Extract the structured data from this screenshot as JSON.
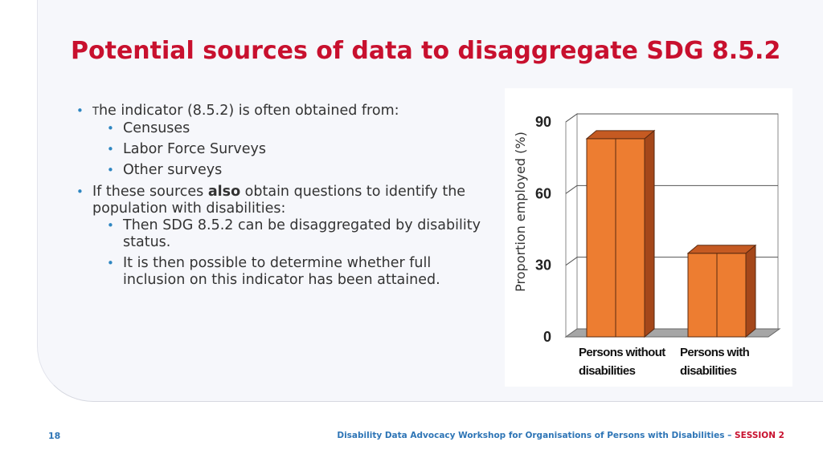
{
  "slide": {
    "title": "Potential sources of data to disaggregate SDG 8.5.2",
    "bullets": {
      "b1_prefix": "T",
      "b1_rest": "he indicator (8.5.2) is often obtained from:",
      "sub1": [
        "Censuses",
        "Labor Force Surveys",
        "Other surveys"
      ],
      "b2_pre": "If these sources ",
      "b2_bold": "also",
      "b2_post": " obtain questions to identify the population with disabilities:",
      "sub2": [
        "Then SDG 8.5.2 can be disaggregated by disability status.",
        "It is then possible to determine whether full inclusion on this indicator has been attained."
      ]
    }
  },
  "footer": {
    "page_number": "18",
    "text": "Disability Data Advocacy Workshop for Organisations of Persons with Disabilities – ",
    "session": "SESSION 2"
  },
  "colors": {
    "title": "#c8102e",
    "accent": "#2e86c1",
    "bar_front": "#ed7d31",
    "bar_side": "#a4471a",
    "bar_top": "#c55a22"
  },
  "chart_data": {
    "type": "bar",
    "categories": [
      [
        "Persons without",
        "disabilities"
      ],
      [
        "Persons with",
        "disabilities"
      ]
    ],
    "values": [
      83,
      35
    ],
    "ylabel": "Proportion employed (%)",
    "ylim": [
      0,
      90
    ],
    "yticks": [
      0,
      30,
      60,
      90
    ],
    "grid": true,
    "style": "3d"
  }
}
